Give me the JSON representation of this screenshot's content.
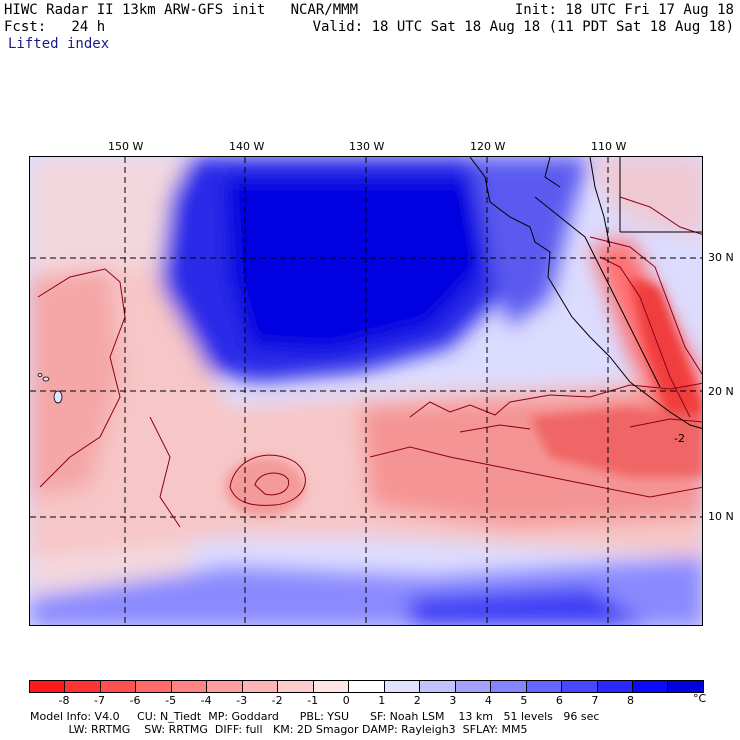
{
  "header": {
    "line1_left": "HIWC Radar II 13km ARW-GFS init   NCAR/MMM",
    "line1_right": "Init: 18 UTC Fri 17 Aug 18",
    "line2_left": "Fcst:   24 h",
    "line2_right": "Valid: 18 UTC Sat 18 Aug 18 (11 PDT Sat 18 Aug 18)",
    "field_name": "Lifted index"
  },
  "map": {
    "lon_labels": [
      "150 W",
      "140 W",
      "130 W",
      "120 W",
      "110 W"
    ],
    "lat_labels": [
      "30 N",
      "20 N",
      "10 N"
    ],
    "contour_label": "-2"
  },
  "colorbar": {
    "tick_labels": [
      "-8",
      "-7",
      "-6",
      "-5",
      "-4",
      "-3",
      "-2",
      "-1",
      "0",
      "1",
      "2",
      "3",
      "4",
      "5",
      "6",
      "7",
      "8"
    ],
    "unit": "°C",
    "colors": [
      "#ff1a1a",
      "#ff3333",
      "#ff5050",
      "#ff6a6a",
      "#ff8585",
      "#ff9e9e",
      "#ffb5b5",
      "#ffcccc",
      "#ffe6e6",
      "#ffffff",
      "#e0e0ff",
      "#c2c2ff",
      "#a3a3ff",
      "#8585ff",
      "#6666ff",
      "#4747ff",
      "#2828ff",
      "#0a0aff",
      "#0000e0"
    ]
  },
  "footer": {
    "line1": "Model Info: V4.0     CU: N_Tiedt  MP: Goddard      PBL: YSU      SF: Noah LSM    13 km   51 levels   96 sec",
    "line2": "           LW: RRTMG    SW: RRTMG  DIFF: full   KM: 2D Smagor DAMP: Rayleigh3  SFLAY: MM5"
  }
}
